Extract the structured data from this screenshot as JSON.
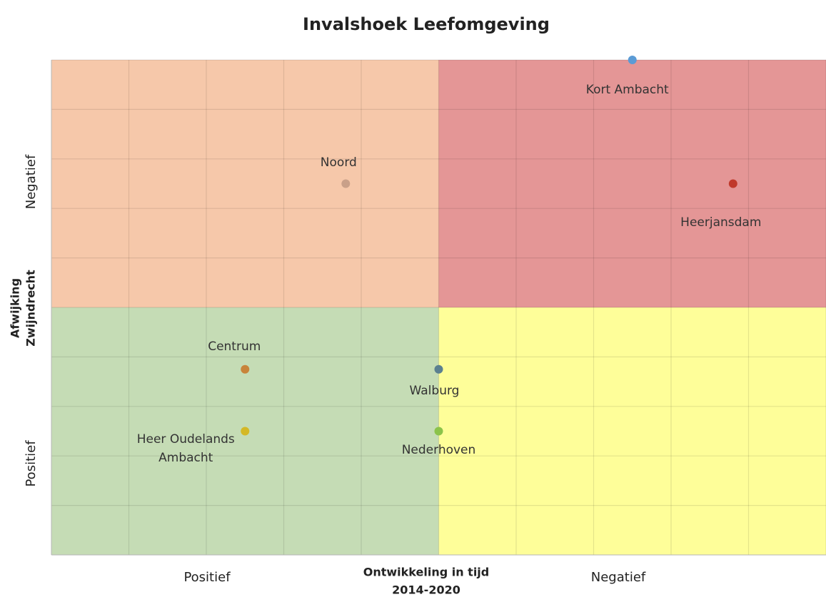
{
  "chart_data": {
    "type": "scatter",
    "title": "Invalshoek Leefomgeving",
    "xlabel": [
      "Ontwikkeling in tijd",
      "2014-2020"
    ],
    "ylabel": [
      "Afwijking",
      "Zwijndrecht"
    ],
    "x_side_labels": [
      "Positief",
      "Negatief"
    ],
    "y_side_labels": [
      "Negatief",
      "Positief"
    ],
    "xlim": [
      -5,
      5
    ],
    "ylim": [
      -5,
      5
    ],
    "xticks": [
      -5,
      -4,
      -3,
      -2,
      -1,
      0,
      1,
      2,
      3,
      4,
      5
    ],
    "yticks": [
      -5,
      -4,
      -3,
      -2,
      -1,
      0,
      1,
      2,
      3,
      4,
      5
    ],
    "grid": true,
    "quadrant_colors": {
      "top_left": "#f6c8aa",
      "top_right": "#e49696",
      "bottom_left": "#c5dcb5",
      "bottom_right": "#fefe99"
    },
    "series": [
      {
        "name": "Kort Ambacht",
        "color": "#5b9bd5",
        "x": [
          2.5
        ],
        "values": [
          5
        ]
      },
      {
        "name": "Noord",
        "color": "#c9a089",
        "x": [
          -1.2
        ],
        "values": [
          2.5
        ]
      },
      {
        "name": "Heerjansdam",
        "color": "#c0392b",
        "x": [
          3.8
        ],
        "values": [
          2.5
        ]
      },
      {
        "name": "Centrum",
        "color": "#c8843a",
        "x": [
          -2.5
        ],
        "values": [
          -1.25
        ]
      },
      {
        "name": "Walburg",
        "color": "#5b8090",
        "x": [
          0
        ],
        "values": [
          -1.25
        ]
      },
      {
        "name": "Heer Oudelands Ambacht",
        "color": "#d4b826",
        "x": [
          -2.5
        ],
        "values": [
          -2.5
        ]
      },
      {
        "name": "Nederhoven",
        "color": "#8bc34a",
        "x": [
          0
        ],
        "values": [
          -2.5
        ]
      }
    ]
  }
}
